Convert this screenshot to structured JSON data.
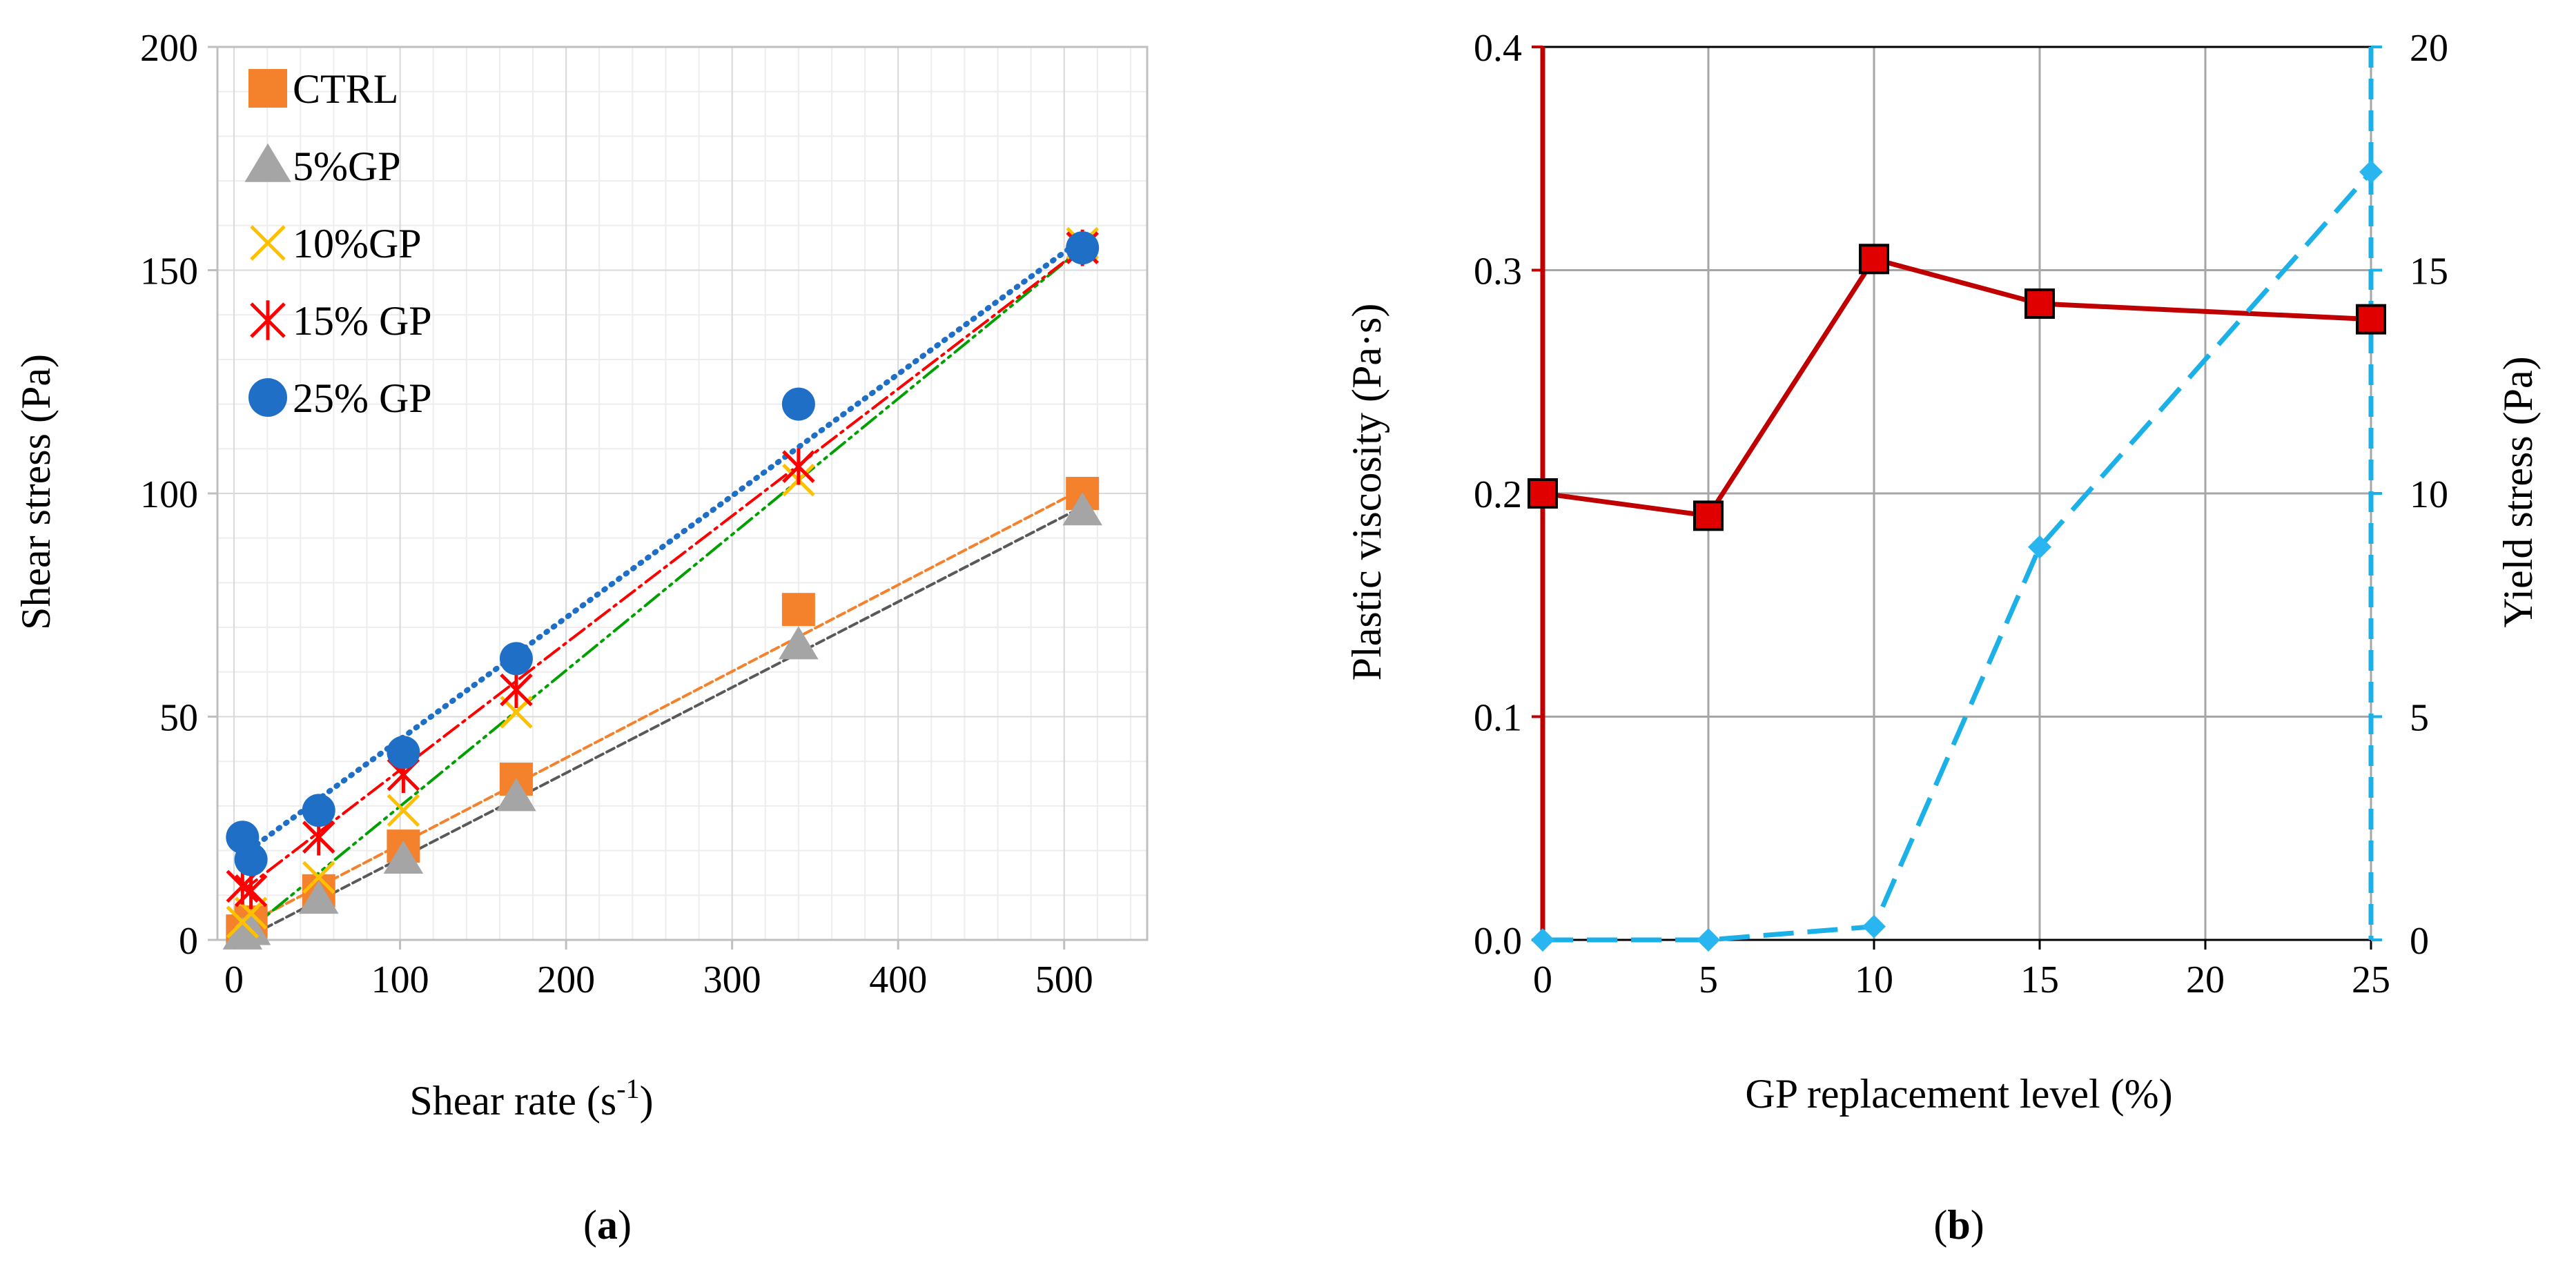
{
  "chart_data": [
    {
      "type": "scatter",
      "panel_label": {
        "open": "(",
        "letter": "a",
        "close": ")"
      },
      "xlabel": {
        "text": "Shear rate (s",
        "sup": "-1",
        "close": ")"
      },
      "ylabel": "Shear stress (Pa)",
      "xlim": [
        -10,
        550
      ],
      "ylim": [
        0,
        200
      ],
      "xticks": [
        0,
        100,
        200,
        300,
        400,
        500
      ],
      "yticks": [
        0,
        50,
        100,
        150,
        200
      ],
      "grid": true,
      "legend_position": "top-left",
      "series": [
        {
          "name": "CTRL",
          "marker": "square",
          "color": "#F4812C",
          "line_color": "#F4812C",
          "line_dash": "12,6",
          "x": [
            5.1,
            10.2,
            51,
            102,
            170,
            340,
            511
          ],
          "y": [
            2,
            4,
            11,
            21,
            36,
            74,
            100
          ],
          "trend": [
            [
              5,
              3
            ],
            [
              511,
              101
            ]
          ]
        },
        {
          "name": "5%GP",
          "marker": "triangle",
          "color": "#A5A5A5",
          "line_color": "#595959",
          "line_dash": "12,6",
          "x": [
            5.1,
            10.2,
            51,
            102,
            170,
            340,
            511
          ],
          "y": [
            1,
            2,
            9,
            18,
            32,
            66,
            96
          ],
          "trend": [
            [
              5,
              0
            ],
            [
              511,
              97
            ]
          ]
        },
        {
          "name": "10%GP",
          "marker": "x",
          "color": "#FFC000",
          "line_color": "#00A000",
          "line_dash": "26,8,4,8,4,8",
          "x": [
            5.1,
            10.2,
            51,
            102,
            170,
            340,
            511
          ],
          "y": [
            4,
            6,
            14,
            29,
            51,
            103,
            156
          ],
          "trend": [
            [
              5,
              1
            ],
            [
              511,
              155
            ]
          ]
        },
        {
          "name": "15% GP",
          "marker": "asterisk",
          "color": "#FF0000",
          "line_color": "#FF0000",
          "line_dash": "26,8,4,8",
          "x": [
            5.1,
            10.2,
            51,
            102,
            170,
            340,
            511
          ],
          "y": [
            12,
            11,
            23,
            37,
            56,
            106,
            155
          ],
          "trend": [
            [
              5,
              11
            ],
            [
              511,
              155
            ]
          ]
        },
        {
          "name": "25% GP",
          "marker": "circle",
          "color": "#1F6FC6",
          "line_color": "#1F6FC6",
          "line_dash": "2,11",
          "x": [
            5.1,
            10.2,
            51,
            102,
            170,
            340,
            511
          ],
          "y": [
            23,
            18,
            29,
            42,
            63,
            120,
            155
          ],
          "trend": [
            [
              5,
              19
            ],
            [
              511,
              157
            ]
          ]
        }
      ]
    },
    {
      "type": "line",
      "panel_label": {
        "open": "(",
        "letter": "b",
        "close": ")"
      },
      "xlabel": "GP replacement level (%)",
      "ylabel": "Plastic viscosity (Pa·s)",
      "y2label": "Yield stress (Pa)",
      "xlim": [
        0,
        25
      ],
      "ylim": [
        0,
        0.4
      ],
      "y2lim": [
        0,
        20
      ],
      "xticks": [
        0,
        5,
        10,
        15,
        20,
        25
      ],
      "yticks": [
        "0.0",
        "0.1",
        "0.2",
        "0.3",
        "0.4"
      ],
      "y2ticks": [
        0,
        5,
        10,
        15,
        20
      ],
      "grid": true,
      "series": [
        {
          "axis": "left",
          "marker": "square",
          "color": "#C00000",
          "marker_fill": "#E00000",
          "x": [
            0,
            5,
            10,
            15,
            25
          ],
          "y": [
            0.2,
            0.19,
            0.305,
            0.285,
            0.278
          ]
        },
        {
          "axis": "right",
          "marker": "diamond",
          "color": "#1CB0E8",
          "marker_fill": "#29B6F0",
          "x": [
            0,
            5,
            10,
            15,
            25
          ],
          "y": [
            0,
            0,
            0.3,
            8.8,
            17.2
          ]
        }
      ]
    }
  ]
}
